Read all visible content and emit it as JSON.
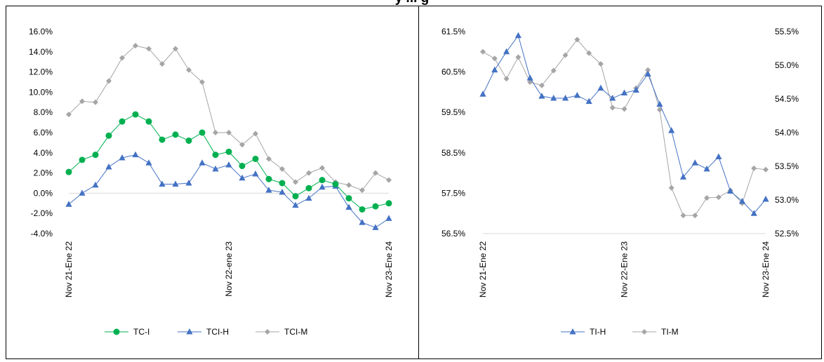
{
  "page": {
    "title_fragment": "y ... g"
  },
  "chart_data": [
    {
      "type": "line",
      "x": [
        "Nov 21-Ene 22",
        "",
        "",
        "",
        "",
        "",
        "",
        "",
        "",
        "",
        "",
        "",
        "Nov 22-ene 23",
        "",
        "",
        "",
        "",
        "",
        "",
        "",
        "",
        "",
        "",
        "",
        "Nov 23-Ene 24"
      ],
      "xticks": [
        "Nov 21-Ene 22",
        "Nov 22-ene 23",
        "Nov 23-Ene 24"
      ],
      "yticks": [
        "16.0%",
        "14.0%",
        "12.0%",
        "10.0%",
        "8.0%",
        "6.0%",
        "4.0%",
        "2.0%",
        "0.0%",
        "-2.0%",
        "-4.0%"
      ],
      "ylim": [
        -4,
        16
      ],
      "grid": false,
      "legend": "bottom",
      "series": [
        {
          "name": "TC-I",
          "color": "#00b050",
          "marker": "circle",
          "values": [
            2.1,
            3.3,
            3.8,
            5.7,
            7.1,
            7.8,
            7.1,
            5.3,
            5.8,
            5.2,
            6.0,
            3.8,
            4.1,
            2.7,
            3.4,
            1.4,
            1.0,
            -0.3,
            0.5,
            1.3,
            0.9,
            -0.5,
            -1.6,
            -1.3,
            -1.0
          ]
        },
        {
          "name": "TCI-H",
          "color": "#4472c4",
          "marker": "triangle",
          "values": [
            -1.1,
            0.0,
            0.8,
            2.6,
            3.5,
            3.8,
            3.0,
            0.9,
            0.9,
            1.0,
            3.0,
            2.4,
            2.8,
            1.5,
            1.9,
            0.3,
            0.1,
            -1.2,
            -0.5,
            0.6,
            0.7,
            -1.4,
            -2.9,
            -3.4,
            -2.5
          ]
        },
        {
          "name": "TCI-M",
          "color": "#a5a5a5",
          "marker": "diamond",
          "values": [
            7.8,
            9.1,
            9.0,
            11.1,
            13.4,
            14.6,
            14.3,
            12.8,
            14.3,
            12.2,
            11.0,
            6.0,
            6.0,
            4.8,
            5.9,
            3.4,
            2.4,
            1.1,
            2.0,
            2.5,
            1.1,
            0.8,
            0.3,
            2.0,
            1.3
          ]
        }
      ]
    },
    {
      "type": "line",
      "x": [
        "Nov 21-Ene 22",
        "",
        "",
        "",
        "",
        "",
        "",
        "",
        "",
        "",
        "",
        "",
        "Nov 22-Ene 23",
        "",
        "",
        "",
        "",
        "",
        "",
        "",
        "",
        "",
        "",
        "",
        "Nov 23-Ene 24"
      ],
      "xticks": [
        "Nov 21-Ene 22",
        "Nov 22-Ene 23",
        "Nov 23-Ene 24"
      ],
      "yticks_left": [
        "61.5%",
        "60.5%",
        "59.5%",
        "58.5%",
        "57.5%",
        "56.5%"
      ],
      "yticks_right": [
        "55.5%",
        "55.0%",
        "54.5%",
        "54.0%",
        "53.5%",
        "53.0%",
        "52.5%"
      ],
      "ylim_left": [
        56.5,
        61.5
      ],
      "ylim_right": [
        52.5,
        55.5
      ],
      "grid": false,
      "legend": "bottom",
      "series": [
        {
          "name": "TI-H",
          "color": "#4472c4",
          "marker": "triangle",
          "axis": "left",
          "values": [
            59.95,
            60.55,
            61.0,
            61.4,
            60.35,
            59.9,
            59.85,
            59.85,
            59.92,
            59.77,
            60.1,
            59.85,
            59.98,
            60.05,
            60.45,
            59.7,
            59.05,
            57.9,
            58.25,
            58.1,
            58.4,
            57.55,
            57.3,
            57.0,
            57.35
          ]
        },
        {
          "name": "TI-M",
          "color": "#a5a5a5",
          "marker": "diamond",
          "axis": "right",
          "values": [
            55.2,
            55.1,
            54.8,
            55.12,
            54.75,
            54.7,
            54.92,
            55.15,
            55.38,
            55.18,
            55.02,
            54.37,
            54.35,
            54.66,
            54.93,
            54.34,
            53.18,
            52.77,
            52.77,
            53.03,
            53.04,
            53.14,
            52.95,
            53.47,
            53.45
          ]
        }
      ]
    }
  ]
}
